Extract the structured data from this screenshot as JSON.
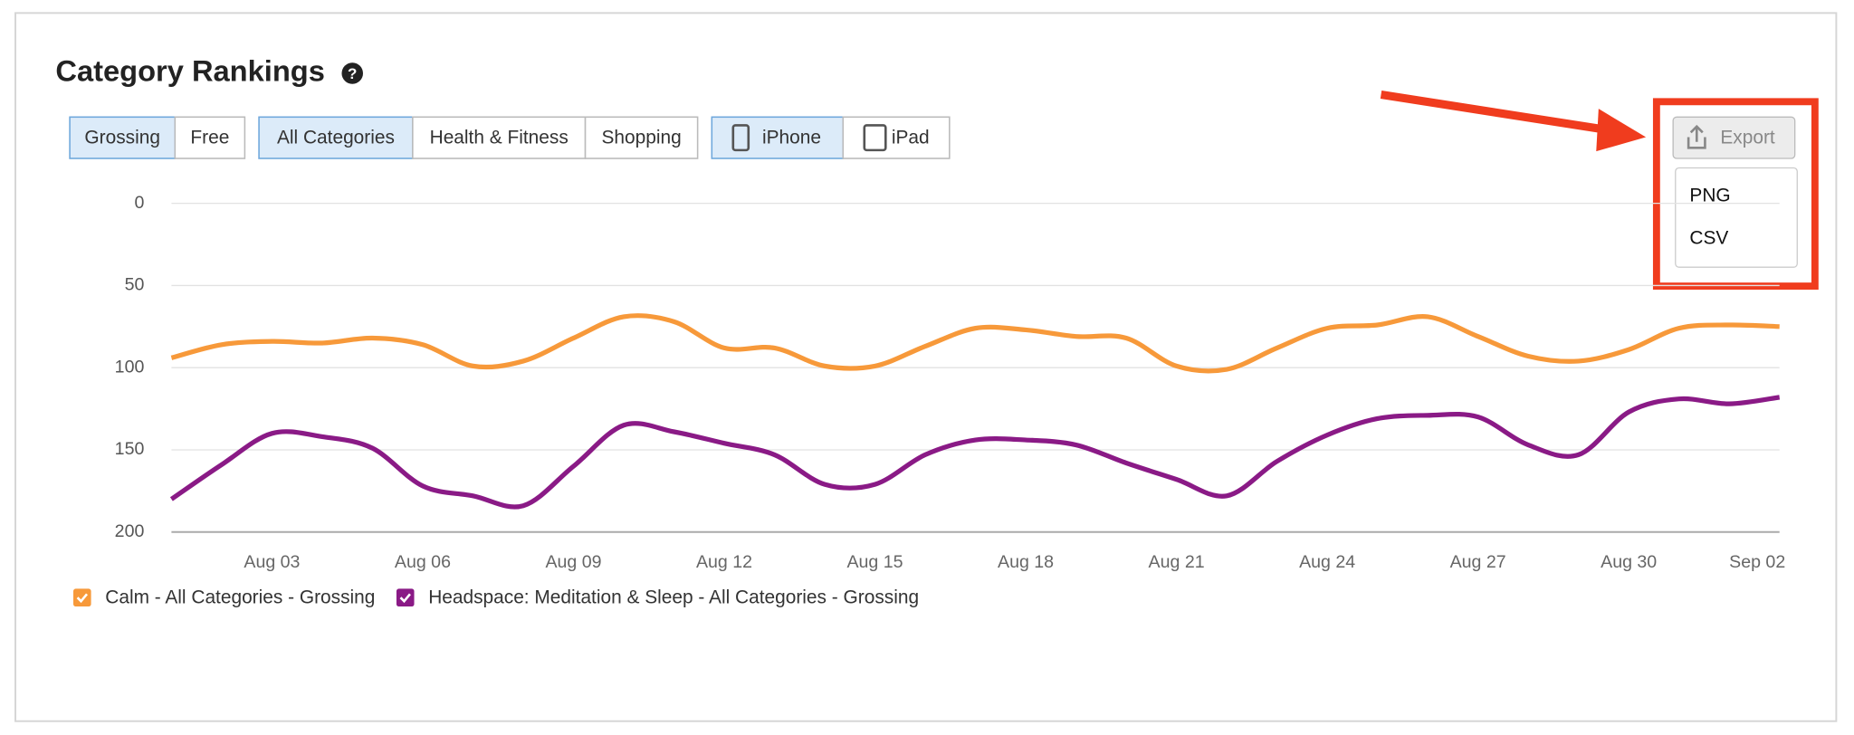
{
  "ui": {
    "title": "Category Rankings",
    "button_groups": [
      {
        "buttons": [
          {
            "label": "Grossing",
            "selected": true
          },
          {
            "label": "Free",
            "selected": false
          }
        ]
      },
      {
        "buttons": [
          {
            "label": "All Categories",
            "selected": true
          },
          {
            "label": "Health & Fitness",
            "selected": false
          },
          {
            "label": "Shopping",
            "selected": false
          }
        ]
      },
      {
        "buttons": [
          {
            "label": "iPhone",
            "selected": true
          },
          {
            "label": "iPad",
            "selected": false
          }
        ]
      }
    ],
    "export": {
      "label": "Export",
      "options": [
        "PNG",
        "CSV"
      ]
    }
  },
  "chart_data": {
    "type": "line",
    "categories": [
      null,
      null,
      "Aug 03",
      null,
      null,
      "Aug 06",
      null,
      null,
      "Aug 09",
      null,
      null,
      "Aug 12",
      null,
      null,
      "Aug 15",
      null,
      null,
      "Aug 18",
      null,
      null,
      "Aug 21",
      null,
      null,
      "Aug 24",
      null,
      null,
      "Aug 27",
      null,
      null,
      "Aug 30",
      null,
      null,
      "Sep 02"
    ],
    "series": [
      {
        "name": "Calm - All Categories - Grossing",
        "color": "#f7993a",
        "values": [
          94,
          86,
          84,
          85,
          82,
          86,
          99,
          96,
          82,
          69,
          72,
          88,
          88,
          99,
          99,
          87,
          76,
          77,
          81,
          82,
          99,
          101,
          88,
          76,
          74,
          69,
          81,
          93,
          96,
          89,
          76,
          74,
          75
        ]
      },
      {
        "name": "Headspace: Meditation & Sleep - All Categories - Grossing",
        "color": "#8a1a86",
        "values": [
          180,
          159,
          140,
          142,
          149,
          172,
          178,
          184,
          160,
          135,
          139,
          146,
          153,
          171,
          171,
          153,
          144,
          144,
          147,
          158,
          168,
          178,
          157,
          141,
          131,
          129,
          130,
          147,
          153,
          127,
          119,
          122,
          118
        ]
      }
    ],
    "ylim": [
      0,
      200
    ],
    "yticks": [
      0,
      50,
      100,
      150,
      200
    ],
    "y_inverted": true,
    "grid": true
  }
}
